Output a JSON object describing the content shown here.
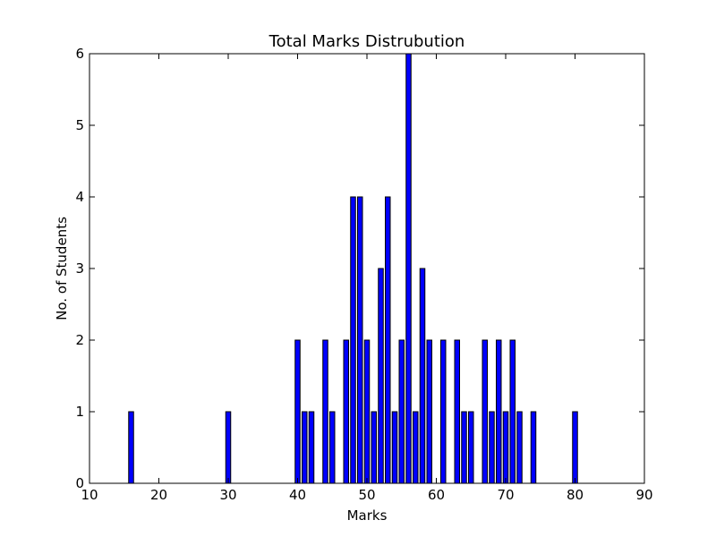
{
  "chart_data": {
    "type": "bar",
    "title": "Total Marks Distrubution",
    "xlabel": "Marks",
    "ylabel": "No. of Students",
    "xlim": [
      10,
      90
    ],
    "ylim": [
      0,
      6
    ],
    "xticks": [
      10,
      20,
      30,
      40,
      50,
      60,
      70,
      80,
      90
    ],
    "yticks": [
      0,
      1,
      2,
      3,
      4,
      5,
      6
    ],
    "grid": false,
    "bar_color": "#0000ff",
    "edge_color": "#000000",
    "points": [
      {
        "x": 16,
        "y": 1
      },
      {
        "x": 30,
        "y": 1
      },
      {
        "x": 40,
        "y": 2
      },
      {
        "x": 41,
        "y": 1
      },
      {
        "x": 42,
        "y": 1
      },
      {
        "x": 44,
        "y": 2
      },
      {
        "x": 45,
        "y": 1
      },
      {
        "x": 47,
        "y": 2
      },
      {
        "x": 48,
        "y": 4
      },
      {
        "x": 49,
        "y": 4
      },
      {
        "x": 50,
        "y": 2
      },
      {
        "x": 51,
        "y": 1
      },
      {
        "x": 52,
        "y": 3
      },
      {
        "x": 53,
        "y": 4
      },
      {
        "x": 54,
        "y": 1
      },
      {
        "x": 55,
        "y": 2
      },
      {
        "x": 56,
        "y": 6
      },
      {
        "x": 57,
        "y": 1
      },
      {
        "x": 58,
        "y": 3
      },
      {
        "x": 59,
        "y": 2
      },
      {
        "x": 61,
        "y": 2
      },
      {
        "x": 63,
        "y": 2
      },
      {
        "x": 64,
        "y": 1
      },
      {
        "x": 65,
        "y": 1
      },
      {
        "x": 67,
        "y": 2
      },
      {
        "x": 68,
        "y": 1
      },
      {
        "x": 69,
        "y": 2
      },
      {
        "x": 70,
        "y": 1
      },
      {
        "x": 71,
        "y": 2
      },
      {
        "x": 72,
        "y": 1
      },
      {
        "x": 74,
        "y": 1
      },
      {
        "x": 80,
        "y": 1
      }
    ]
  }
}
